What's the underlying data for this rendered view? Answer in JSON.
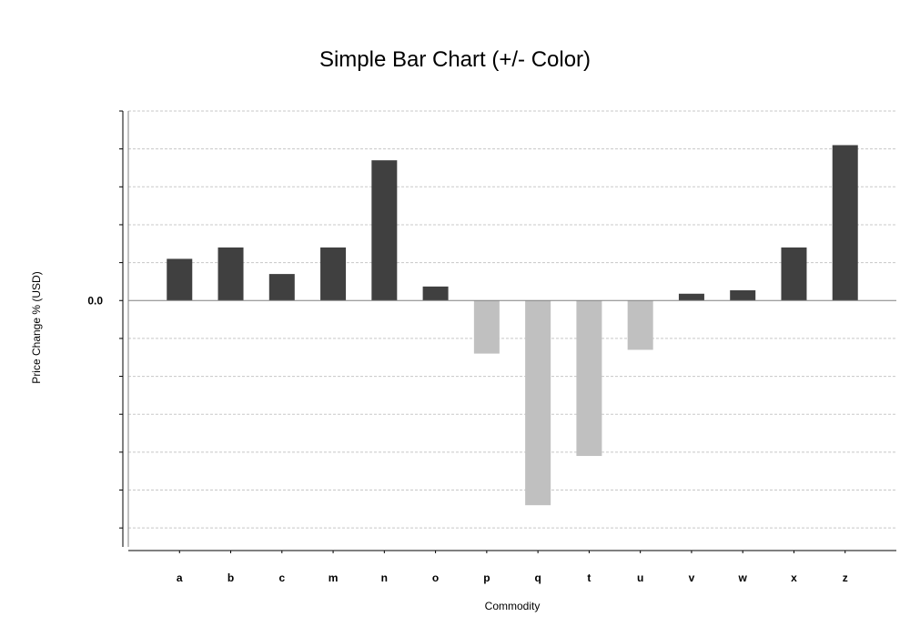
{
  "chart_data": {
    "type": "bar",
    "title": "Simple Bar Chart (+/- Color)",
    "xlabel": "Commodity",
    "ylabel": "Price Change % (USD)",
    "categories": [
      "a",
      "b",
      "c",
      "m",
      "n",
      "o",
      "p",
      "q",
      "t",
      "u",
      "v",
      "w",
      "x",
      "z"
    ],
    "values": [
      1.1,
      1.4,
      0.7,
      1.4,
      3.7,
      0.37,
      -1.4,
      -5.4,
      -4.1,
      -1.3,
      0.18,
      0.27,
      1.4,
      4.1
    ],
    "ylim": [
      -6.5,
      5.0
    ],
    "y_tick_labels": [
      "0.0"
    ],
    "grid": true,
    "colors": {
      "positive": "#404040",
      "negative": "#c0c0c0",
      "grid": "#c8c8c8",
      "axis": "#000000"
    }
  }
}
